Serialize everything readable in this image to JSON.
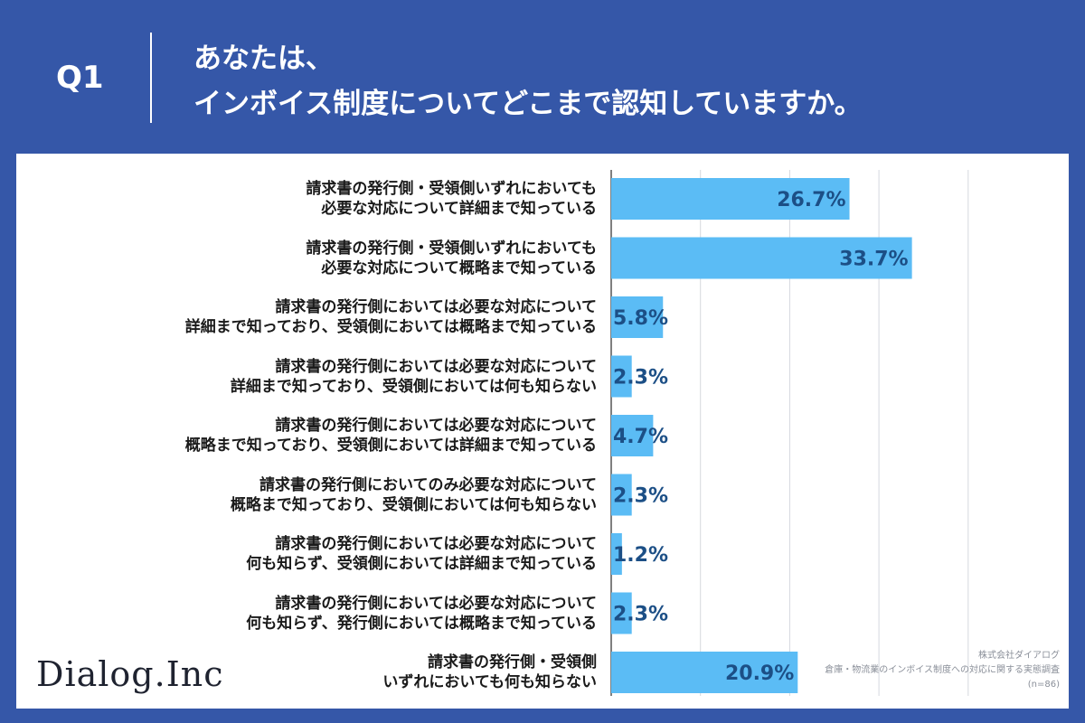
{
  "header": {
    "q_label": "Q1",
    "title_line1": "あなたは、",
    "title_line2": "インボイス制度についてどこまで認知していますか。"
  },
  "logo": "Dialog.Inc",
  "credit": {
    "company": "株式会社ダイアログ",
    "survey": "倉庫・物流業のインボイス制度への対応に関する実態調査",
    "sample": "(n=86)"
  },
  "colors": {
    "background": "#3557a8",
    "bar": "#5bbcf5",
    "value_text": "#1c4f86"
  },
  "chart_data": {
    "type": "bar",
    "orientation": "horizontal",
    "grid": true,
    "xlim": [
      0,
      40
    ],
    "categories": [
      [
        "請求書の発行側・受領側いずれにおいても",
        "必要な対応について詳細まで知っている"
      ],
      [
        "請求書の発行側・受領側いずれにおいても",
        "必要な対応について概略まで知っている"
      ],
      [
        "請求書の発行側においては必要な対応について",
        "詳細まで知っており、受領側においては概略まで知っている"
      ],
      [
        "請求書の発行側においては必要な対応について",
        "詳細まで知っており、受領側においては何も知らない"
      ],
      [
        "請求書の発行側においては必要な対応について",
        "概略まで知っており、受領側においては詳細まで知っている"
      ],
      [
        "請求書の発行側においてのみ必要な対応について",
        "概略まで知っており、受領側においては何も知らない"
      ],
      [
        "請求書の発行側においては必要な対応について",
        "何も知らず、受領側においては詳細まで知っている"
      ],
      [
        "請求書の発行側においては必要な対応について",
        "何も知らず、発行側においては概略まで知っている"
      ],
      [
        "請求書の発行側・受領側",
        "いずれにおいても何も知らない"
      ]
    ],
    "values": [
      26.7,
      33.7,
      5.8,
      2.3,
      4.7,
      2.3,
      1.2,
      2.3,
      20.9
    ],
    "value_labels": [
      "26.7%",
      "33.7%",
      "5.8%",
      "2.3%",
      "4.7%",
      "2.3%",
      "1.2%",
      "2.3%",
      "20.9%"
    ]
  }
}
